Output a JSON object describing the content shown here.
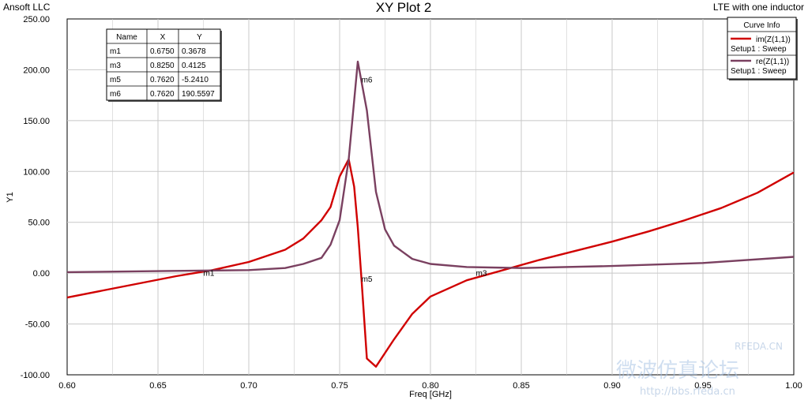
{
  "header": {
    "company": "Ansoft LLC",
    "title": "XY Plot 2",
    "design": "LTE with one inductor"
  },
  "legend": {
    "title": "Curve Info",
    "entries": [
      {
        "name": "im(Z(1,1))",
        "setup": "Setup1 : Sweep",
        "color": "#d00000"
      },
      {
        "name": "re(Z(1,1))",
        "setup": "Setup1 : Sweep",
        "color": "#7a4060"
      }
    ]
  },
  "marker_table": {
    "headers": [
      "Name",
      "X",
      "Y"
    ],
    "rows": [
      [
        "m1",
        "0.6750",
        "0.3678"
      ],
      [
        "m3",
        "0.8250",
        "0.4125"
      ],
      [
        "m5",
        "0.7620",
        "-5.2410"
      ],
      [
        "m6",
        "0.7620",
        "190.5597"
      ]
    ]
  },
  "chart_data": {
    "type": "line",
    "title": "XY Plot 2",
    "xlabel": "Freq [GHz]",
    "ylabel": "Y1",
    "xlim": [
      0.6,
      1.0
    ],
    "ylim": [
      -100,
      250
    ],
    "grid": true,
    "legend_position": "top-right",
    "x_ticks": [
      "0.60",
      "0.65",
      "0.70",
      "0.75",
      "0.80",
      "0.85",
      "0.90",
      "0.95",
      "1.00"
    ],
    "y_ticks": [
      "250.00",
      "200.00",
      "150.00",
      "100.00",
      "50.00",
      "0.00",
      "-50.00",
      "-100.00"
    ],
    "series": [
      {
        "name": "im(Z(1,1))",
        "color": "#d00000",
        "x": [
          0.6,
          0.62,
          0.64,
          0.66,
          0.68,
          0.7,
          0.72,
          0.73,
          0.74,
          0.745,
          0.75,
          0.755,
          0.758,
          0.76,
          0.762,
          0.765,
          0.77,
          0.78,
          0.79,
          0.8,
          0.82,
          0.84,
          0.86,
          0.88,
          0.9,
          0.92,
          0.94,
          0.96,
          0.98,
          1.0
        ],
        "y": [
          -24,
          -17,
          -10,
          -3,
          3,
          11,
          23,
          34,
          52,
          65,
          95,
          112,
          85,
          45,
          -5,
          -84,
          -92,
          -65,
          -40,
          -23,
          -7,
          3,
          13,
          22,
          31,
          41,
          52,
          64,
          79,
          99
        ]
      },
      {
        "name": "re(Z(1,1))",
        "color": "#7a4060",
        "x": [
          0.6,
          0.65,
          0.7,
          0.72,
          0.73,
          0.74,
          0.745,
          0.75,
          0.755,
          0.76,
          0.765,
          0.77,
          0.775,
          0.78,
          0.79,
          0.8,
          0.82,
          0.85,
          0.9,
          0.95,
          1.0
        ],
        "y": [
          1,
          2,
          3,
          5,
          9,
          15,
          28,
          52,
          112,
          208,
          160,
          80,
          43,
          27,
          14,
          9,
          6,
          5,
          7,
          10,
          16
        ]
      }
    ],
    "markers": [
      {
        "name": "m1",
        "x": 0.675,
        "y": 0.3678
      },
      {
        "name": "m3",
        "x": 0.825,
        "y": 0.4125
      },
      {
        "name": "m5",
        "x": 0.762,
        "y": -5.241
      },
      {
        "name": "m6",
        "x": 0.762,
        "y": 190.5597
      }
    ]
  },
  "watermark": {
    "site": "RFEDA.CN",
    "cn_text": "微波仿真论坛",
    "url": "http://bbs.rfeda.cn"
  }
}
